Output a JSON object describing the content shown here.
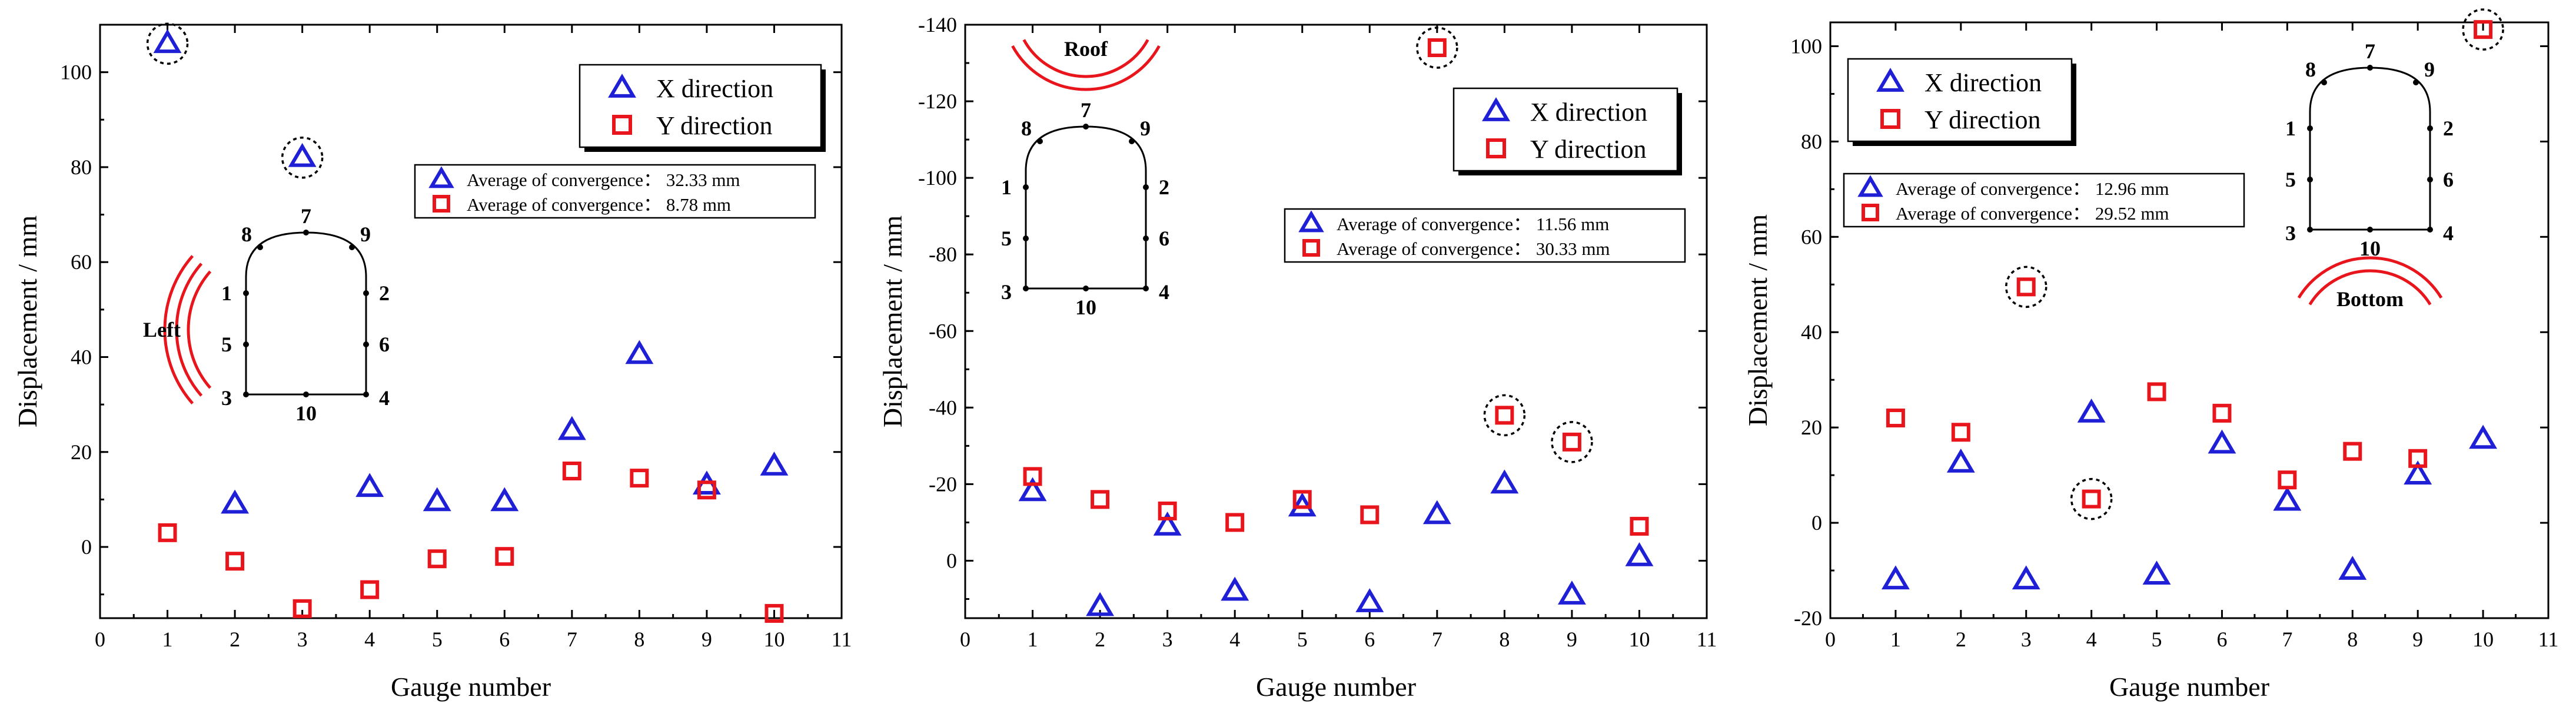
{
  "colors": {
    "x_series": "#1f1fd6",
    "y_series": "#e8151c",
    "axis": "#000000",
    "highlight_ring": "#000000",
    "location_arc": "#e8151c"
  },
  "chart_data": [
    {
      "type": "scatter",
      "panel": "left",
      "xlabel": "Gauge number",
      "ylabel": "Displacement  / mm",
      "xlim": [
        0,
        11
      ],
      "ylim": [
        -15,
        110
      ],
      "y_reversed": false,
      "x_ticks": [
        0,
        1,
        2,
        3,
        4,
        5,
        6,
        7,
        8,
        9,
        10,
        11
      ],
      "y_ticks": [
        0,
        20,
        40,
        60,
        80,
        100
      ],
      "series": [
        {
          "name": "X direction",
          "marker": "triangle",
          "x": [
            1,
            2,
            3,
            4,
            5,
            6,
            7,
            8,
            9,
            10
          ],
          "values": [
            106,
            9,
            82,
            12.5,
            9.5,
            9.5,
            24.5,
            40.5,
            13,
            17
          ]
        },
        {
          "name": "Y direction",
          "marker": "square",
          "x": [
            1,
            2,
            3,
            4,
            5,
            6,
            7,
            8,
            9,
            10
          ],
          "values": [
            3,
            -3,
            -13,
            -9,
            -2.5,
            -2,
            16,
            14.5,
            12,
            -14
          ]
        }
      ],
      "highlighted": [
        {
          "series": "X direction",
          "gauge": 1
        },
        {
          "series": "X direction",
          "gauge": 3
        }
      ],
      "legend": {
        "position": "top-right",
        "entries": [
          "X direction",
          "Y direction"
        ]
      },
      "averages": [
        "Average of convergence： 32.33 mm",
        "Average of convergence： 8.78 mm"
      ],
      "tunnel_label": "Left",
      "gauge_points": [
        "1",
        "2",
        "3",
        "4",
        "5",
        "6",
        "7",
        "8",
        "9",
        "10"
      ]
    },
    {
      "type": "scatter",
      "panel": "middle",
      "xlabel": "Gauge number",
      "ylabel": "Displacement  / mm",
      "xlim": [
        0,
        11
      ],
      "ylim": [
        -140,
        15
      ],
      "y_reversed": true,
      "x_ticks": [
        0,
        1,
        2,
        3,
        4,
        5,
        6,
        7,
        8,
        9,
        10,
        11
      ],
      "y_ticks": [
        -140,
        -120,
        -100,
        -80,
        -60,
        -40,
        -20,
        0
      ],
      "series": [
        {
          "name": "X direction",
          "marker": "triangle",
          "x": [
            1,
            2,
            3,
            4,
            5,
            6,
            7,
            8,
            9,
            10
          ],
          "values": [
            -18,
            12,
            -9,
            8,
            -14,
            11,
            -12,
            -20,
            9,
            -1
          ]
        },
        {
          "name": "Y direction",
          "marker": "square",
          "x": [
            1,
            2,
            3,
            4,
            5,
            6,
            7,
            8,
            9,
            10
          ],
          "values": [
            -22,
            -16,
            -13,
            -10,
            -16,
            -12,
            -134,
            -38,
            -31,
            -9
          ]
        }
      ],
      "highlighted": [
        {
          "series": "Y direction",
          "gauge": 7
        },
        {
          "series": "Y direction",
          "gauge": 8
        },
        {
          "series": "Y direction",
          "gauge": 9
        }
      ],
      "legend": {
        "position": "top-right",
        "entries": [
          "X direction",
          "Y direction"
        ]
      },
      "averages": [
        "Average of convergence： 11.56 mm",
        "Average of convergence： 30.33 mm"
      ],
      "tunnel_label": "Roof",
      "gauge_points": [
        "1",
        "2",
        "3",
        "4",
        "5",
        "6",
        "7",
        "8",
        "9",
        "10"
      ]
    },
    {
      "type": "scatter",
      "panel": "right",
      "xlabel": "Gauge number",
      "ylabel": "Displacement  / mm",
      "xlim": [
        0,
        11
      ],
      "ylim": [
        -20,
        105
      ],
      "y_reversed": false,
      "x_ticks": [
        0,
        1,
        2,
        3,
        4,
        5,
        6,
        7,
        8,
        9,
        10,
        11
      ],
      "y_ticks": [
        -20,
        0,
        20,
        40,
        60,
        80,
        100
      ],
      "series": [
        {
          "name": "X direction",
          "marker": "triangle",
          "x": [
            1,
            2,
            3,
            4,
            5,
            6,
            7,
            8,
            9,
            10
          ],
          "values": [
            -12,
            12.5,
            -12,
            23,
            -11,
            16.5,
            4.5,
            -10,
            10,
            17.5
          ]
        },
        {
          "name": "Y direction",
          "marker": "square",
          "x": [
            1,
            2,
            3,
            4,
            5,
            6,
            7,
            8,
            9,
            10
          ],
          "values": [
            22,
            19,
            49.5,
            5,
            27.5,
            23,
            9,
            15,
            13.5,
            103.5
          ]
        }
      ],
      "highlighted": [
        {
          "series": "Y direction",
          "gauge": 3
        },
        {
          "series": "Y direction",
          "gauge": 4
        },
        {
          "series": "Y direction",
          "gauge": 10
        }
      ],
      "legend": {
        "position": "top-left",
        "entries": [
          "X direction",
          "Y direction"
        ]
      },
      "averages": [
        "Average of convergence： 12.96 mm",
        "Average of convergence： 29.52 mm"
      ],
      "tunnel_label": "Bottom",
      "gauge_points": [
        "1",
        "2",
        "3",
        "4",
        "5",
        "6",
        "7",
        "8",
        "9",
        "10"
      ]
    }
  ]
}
